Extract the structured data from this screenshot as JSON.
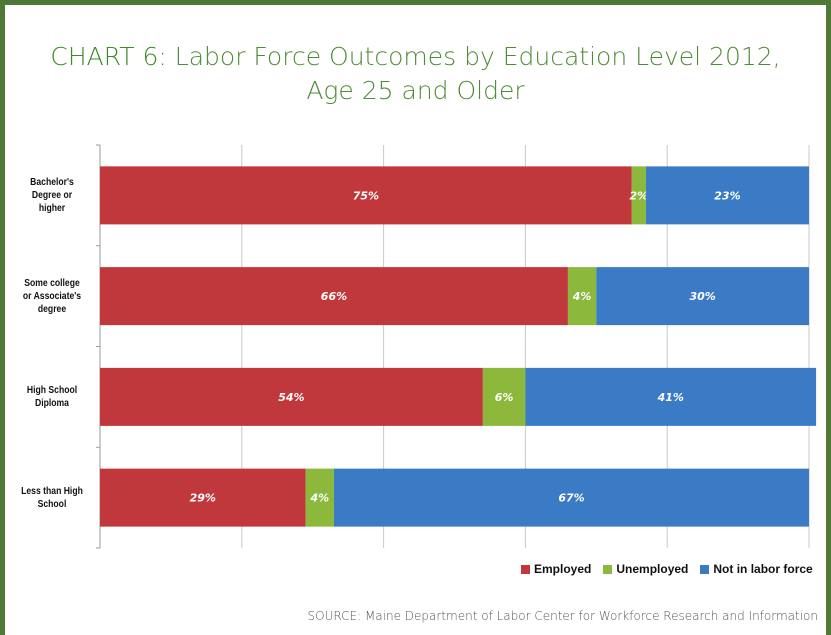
{
  "title_prefix": "CHART 6:",
  "title_line1": "Labor Force Outcomes by Education Level 2012,",
  "title_line2": "Age 25 and Older",
  "source": "SOURCE: Maine Department of Labor Center for Workforce Research and Information",
  "colors": {
    "employed": "#c0383b",
    "unemployed": "#8cb83c",
    "not_in_labor_force": "#3b7bc6",
    "border": "#4f7a35"
  },
  "chart_data": {
    "type": "bar",
    "orientation": "horizontal",
    "stacked": "percent",
    "categories": [
      "Bachelor's Degree or higher",
      "Some college or Associate's degree",
      "High School Diploma",
      "Less than High School"
    ],
    "category_lines": [
      [
        "Bachelor's",
        "Degree or",
        "higher"
      ],
      [
        "Some college",
        "or Associate's",
        "degree"
      ],
      [
        "High School",
        "Diploma"
      ],
      [
        "Less than High",
        "School"
      ]
    ],
    "series": [
      {
        "name": "Employed",
        "values": [
          75,
          66,
          54,
          29
        ],
        "labels": [
          "75%",
          "66%",
          "54%",
          "29%"
        ]
      },
      {
        "name": "Unemployed",
        "values": [
          2,
          4,
          6,
          4
        ],
        "labels": [
          "2%",
          "4%",
          "6%",
          "4%"
        ]
      },
      {
        "name": "Not in labor force",
        "values": [
          23,
          30,
          41,
          67
        ],
        "labels": [
          "23%",
          "30%",
          "41%",
          "67%"
        ]
      }
    ],
    "xlim": [
      0,
      100
    ],
    "grid": true,
    "legend": "bottom-right"
  }
}
